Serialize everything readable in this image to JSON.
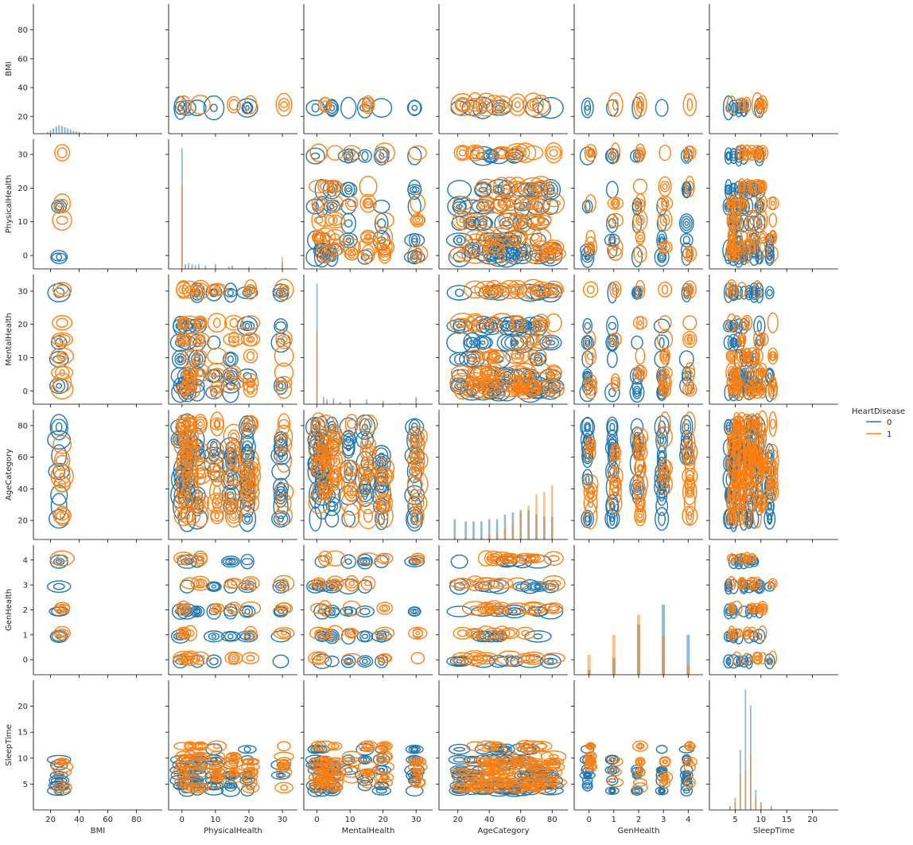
{
  "chart_data": {
    "type": "pairplot",
    "kind": "kde-contours with histogram diagonal",
    "variables": [
      "BMI",
      "PhysicalHealth",
      "MentalHealth",
      "AgeCategory",
      "GenHealth",
      "SleepTime"
    ],
    "hue": {
      "title": "HeartDisease",
      "levels": [
        {
          "label": "0",
          "color": "#1f77b4"
        },
        {
          "label": "1",
          "color": "#ff7f0e"
        }
      ]
    },
    "axes": {
      "BMI": {
        "range": [
          8,
          98
        ],
        "ticks": [
          20,
          40,
          60,
          80
        ],
        "tick_labels": [
          "20",
          "40",
          "60",
          "80"
        ]
      },
      "PhysicalHealth": {
        "range": [
          -4,
          34.5
        ],
        "ticks": [
          0,
          10,
          20,
          30
        ],
        "tick_labels": [
          "0",
          "10",
          "20",
          "30"
        ]
      },
      "MentalHealth": {
        "range": [
          -4,
          35
        ],
        "ticks": [
          0,
          10,
          20,
          30
        ],
        "tick_labels": [
          "0",
          "10",
          "20",
          "30"
        ]
      },
      "AgeCategory": {
        "range": [
          8,
          90
        ],
        "ticks": [
          20,
          40,
          60,
          80
        ],
        "tick_labels": [
          "20",
          "40",
          "60",
          "80"
        ]
      },
      "GenHealth": {
        "range": [
          -0.6,
          4.6
        ],
        "ticks": [
          0,
          1,
          2,
          3,
          4
        ],
        "tick_labels": [
          "0",
          "1",
          "2",
          "3",
          "4"
        ]
      },
      "SleepTime": {
        "range": [
          0,
          25
        ],
        "ticks": [
          5,
          10,
          15,
          20
        ],
        "tick_labels": [
          "5",
          "10",
          "15",
          "20"
        ]
      }
    },
    "modes": {
      "BMI": [
        27
      ],
      "PhysicalHealth": [
        0,
        2,
        5,
        10,
        15,
        20,
        30
      ],
      "MentalHealth": [
        0,
        2,
        5,
        10,
        15,
        20,
        30
      ],
      "AgeCategory": [
        22,
        30,
        37,
        42,
        47,
        52,
        57,
        62,
        67,
        72,
        80
      ],
      "GenHealth": [
        0,
        1,
        2,
        3,
        4
      ],
      "SleepTime": [
        4,
        5,
        6,
        7,
        8,
        9,
        10,
        12
      ]
    },
    "spread": {
      "BMI": 6,
      "PhysicalHealth": 2.2,
      "MentalHealth": 2.2,
      "AgeCategory": 6,
      "GenHealth": 0.22,
      "SleepTime": 0.8
    },
    "diagonal_histograms": {
      "BMI": {
        "bins": [
          [
            15,
            1
          ],
          [
            18,
            3
          ],
          [
            20,
            6
          ],
          [
            22,
            9
          ],
          [
            24,
            12
          ],
          [
            26,
            14
          ],
          [
            28,
            13
          ],
          [
            30,
            11
          ],
          [
            32,
            9
          ],
          [
            34,
            7
          ],
          [
            36,
            5
          ],
          [
            38,
            4
          ],
          [
            40,
            3
          ],
          [
            44,
            2
          ],
          [
            48,
            1
          ]
        ],
        "max_scale": 14
      },
      "PhysicalHealth": {
        "bins": [
          [
            0,
            100,
            70
          ],
          [
            1,
            4,
            2
          ],
          [
            2,
            5,
            2
          ],
          [
            3,
            4,
            2
          ],
          [
            4,
            3,
            1
          ],
          [
            5,
            4,
            2
          ],
          [
            7,
            3,
            1
          ],
          [
            10,
            4,
            2
          ],
          [
            14,
            2,
            1
          ],
          [
            15,
            3,
            2
          ],
          [
            20,
            2,
            1
          ],
          [
            25,
            1,
            1
          ],
          [
            30,
            6,
            10
          ]
        ],
        "max_scale": 100
      },
      "MentalHealth": {
        "bins": [
          [
            0,
            100,
            60
          ],
          [
            2,
            6,
            3
          ],
          [
            3,
            4,
            2
          ],
          [
            5,
            5,
            3
          ],
          [
            7,
            2,
            1
          ],
          [
            10,
            4,
            2
          ],
          [
            15,
            4,
            2
          ],
          [
            20,
            3,
            2
          ],
          [
            25,
            1,
            1
          ],
          [
            30,
            6,
            5
          ]
        ],
        "max_scale": 100
      },
      "AgeCategory": {
        "bins": [
          [
            18,
            9,
            1
          ],
          [
            25,
            8,
            1
          ],
          [
            30,
            8,
            1
          ],
          [
            35,
            8,
            1
          ],
          [
            40,
            9,
            2
          ],
          [
            45,
            9,
            3
          ],
          [
            50,
            11,
            5
          ],
          [
            55,
            12,
            7
          ],
          [
            60,
            13,
            12
          ],
          [
            65,
            13,
            15
          ],
          [
            70,
            11,
            20
          ],
          [
            75,
            10,
            21
          ],
          [
            80,
            10,
            24
          ]
        ],
        "max_scale": 24
      },
      "GenHealth": {
        "bins": [
          [
            0,
            3,
            12
          ],
          [
            1,
            10,
            24
          ],
          [
            2,
            30,
            36
          ],
          [
            3,
            42,
            23
          ],
          [
            4,
            24,
            6
          ]
        ],
        "max_scale": 42
      },
      "SleepTime": {
        "bins": [
          [
            4,
            2,
            1
          ],
          [
            5,
            6,
            4
          ],
          [
            6,
            30,
            18
          ],
          [
            7,
            60,
            20
          ],
          [
            8,
            52,
            28
          ],
          [
            9,
            10,
            6
          ],
          [
            10,
            4,
            3
          ],
          [
            12,
            2,
            1
          ]
        ],
        "max_scale": 60
      }
    }
  }
}
